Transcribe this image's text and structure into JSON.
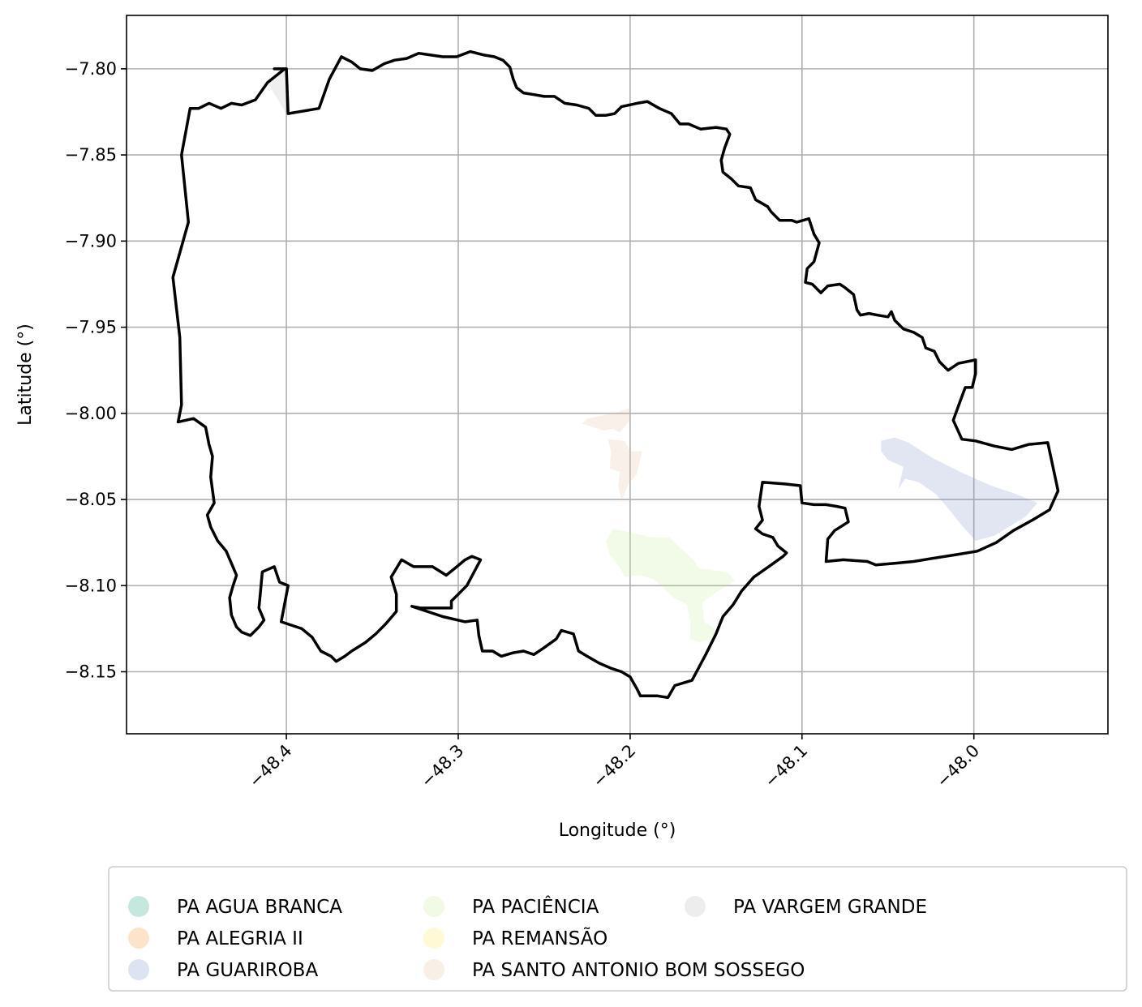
{
  "chart_data": {
    "type": "map",
    "title": "",
    "xlabel": "Longitude (°)",
    "ylabel": "Latitude (°)",
    "xlim": [
      -48.493,
      -47.922
    ],
    "ylim": [
      -8.186,
      -7.769
    ],
    "x_ticks": [
      -48.4,
      -48.3,
      -48.2,
      -48.1,
      -48.0
    ],
    "x_tick_labels": [
      "−48.4",
      "−48.3",
      "−48.2",
      "−48.1",
      "−48.0"
    ],
    "y_ticks": [
      -7.8,
      -7.85,
      -7.9,
      -7.95,
      -8.0,
      -8.05,
      -8.1,
      -8.15
    ],
    "y_tick_labels": [
      "−7.80",
      "−7.85",
      "−7.90",
      "−7.95",
      "−8.00",
      "−8.05",
      "−8.10",
      "−8.15"
    ],
    "grid": true,
    "legend_position": "bottom",
    "legend_columns": 3,
    "boundary": {
      "stroke": "#000000",
      "coords": [
        [
          -48.401,
          -7.8
        ],
        [
          -48.411,
          -7.808
        ],
        [
          -48.418,
          -7.818
        ],
        [
          -48.426,
          -7.821
        ],
        [
          -48.432,
          -7.82
        ],
        [
          -48.438,
          -7.823
        ],
        [
          -48.445,
          -7.82
        ],
        [
          -48.451,
          -7.823
        ],
        [
          -48.456,
          -7.823
        ],
        [
          -48.461,
          -7.85
        ],
        [
          -48.457,
          -7.889
        ],
        [
          -48.466,
          -7.921
        ],
        [
          -48.462,
          -7.956
        ],
        [
          -48.461,
          -7.995
        ],
        [
          -48.463,
          -8.005
        ],
        [
          -48.454,
          -8.003
        ],
        [
          -48.447,
          -8.008
        ],
        [
          -48.445,
          -8.018
        ],
        [
          -48.443,
          -8.025
        ],
        [
          -48.444,
          -8.037
        ],
        [
          -48.442,
          -8.052
        ],
        [
          -48.446,
          -8.059
        ],
        [
          -48.444,
          -8.066
        ],
        [
          -48.44,
          -8.074
        ],
        [
          -48.435,
          -8.08
        ],
        [
          -48.432,
          -8.087
        ],
        [
          -48.429,
          -8.094
        ],
        [
          -48.431,
          -8.1
        ],
        [
          -48.433,
          -8.107
        ],
        [
          -48.432,
          -8.117
        ],
        [
          -48.429,
          -8.124
        ],
        [
          -48.426,
          -8.127
        ],
        [
          -48.421,
          -8.129
        ],
        [
          -48.416,
          -8.124
        ],
        [
          -48.413,
          -8.12
        ],
        [
          -48.416,
          -8.113
        ],
        [
          -48.415,
          -8.103
        ],
        [
          -48.414,
          -8.092
        ],
        [
          -48.407,
          -8.089
        ],
        [
          -48.404,
          -8.098
        ],
        [
          -48.399,
          -8.1
        ],
        [
          -48.403,
          -8.121
        ],
        [
          -48.391,
          -8.125
        ],
        [
          -48.385,
          -8.13
        ],
        [
          -48.38,
          -8.138
        ],
        [
          -48.374,
          -8.141
        ],
        [
          -48.371,
          -8.144
        ],
        [
          -48.366,
          -8.141
        ],
        [
          -48.362,
          -8.138
        ],
        [
          -48.354,
          -8.133
        ],
        [
          -48.348,
          -8.128
        ],
        [
          -48.342,
          -8.122
        ],
        [
          -48.336,
          -8.115
        ],
        [
          -48.336,
          -8.105
        ],
        [
          -48.339,
          -8.095
        ],
        [
          -48.333,
          -8.085
        ],
        [
          -48.326,
          -8.089
        ],
        [
          -48.315,
          -8.089
        ],
        [
          -48.307,
          -8.094
        ],
        [
          -48.302,
          -8.09
        ],
        [
          -48.296,
          -8.085
        ],
        [
          -48.292,
          -8.083
        ],
        [
          -48.287,
          -8.085
        ],
        [
          -48.295,
          -8.1
        ],
        [
          -48.304,
          -8.109
        ],
        [
          -48.304,
          -8.113
        ],
        [
          -48.317,
          -8.113
        ],
        [
          -48.322,
          -8.113
        ],
        [
          -48.327,
          -8.112
        ],
        [
          -48.309,
          -8.118
        ],
        [
          -48.296,
          -8.121
        ],
        [
          -48.289,
          -8.12
        ],
        [
          -48.288,
          -8.129
        ],
        [
          -48.286,
          -8.138
        ],
        [
          -48.28,
          -8.138
        ],
        [
          -48.275,
          -8.141
        ],
        [
          -48.268,
          -8.139
        ],
        [
          -48.262,
          -8.138
        ],
        [
          -48.256,
          -8.14
        ],
        [
          -48.25,
          -8.136
        ],
        [
          -48.243,
          -8.131
        ],
        [
          -48.24,
          -8.126
        ],
        [
          -48.233,
          -8.128
        ],
        [
          -48.23,
          -8.138
        ],
        [
          -48.225,
          -8.141
        ],
        [
          -48.218,
          -8.145
        ],
        [
          -48.211,
          -8.148
        ],
        [
          -48.205,
          -8.15
        ],
        [
          -48.2,
          -8.153
        ],
        [
          -48.196,
          -8.16
        ],
        [
          -48.194,
          -8.164
        ],
        [
          -48.189,
          -8.164
        ],
        [
          -48.184,
          -8.164
        ],
        [
          -48.178,
          -8.165
        ],
        [
          -48.174,
          -8.158
        ],
        [
          -48.164,
          -8.155
        ],
        [
          -48.156,
          -8.14
        ],
        [
          -48.15,
          -8.128
        ],
        [
          -48.146,
          -8.118
        ],
        [
          -48.14,
          -8.111
        ],
        [
          -48.135,
          -8.103
        ],
        [
          -48.128,
          -8.095
        ],
        [
          -48.118,
          -8.088
        ],
        [
          -48.111,
          -8.083
        ],
        [
          -48.109,
          -8.081
        ],
        [
          -48.114,
          -8.077
        ],
        [
          -48.117,
          -8.072
        ],
        [
          -48.123,
          -8.07
        ],
        [
          -48.127,
          -8.067
        ],
        [
          -48.123,
          -8.062
        ],
        [
          -48.125,
          -8.054
        ],
        [
          -48.124,
          -8.047
        ],
        [
          -48.123,
          -8.04
        ],
        [
          -48.11,
          -8.041
        ],
        [
          -48.101,
          -8.042
        ],
        [
          -48.1,
          -8.052
        ],
        [
          -48.093,
          -8.053
        ],
        [
          -48.086,
          -8.053
        ],
        [
          -48.08,
          -8.054
        ],
        [
          -48.075,
          -8.055
        ],
        [
          -48.073,
          -8.063
        ],
        [
          -48.081,
          -8.068
        ],
        [
          -48.085,
          -8.073
        ],
        [
          -48.086,
          -8.086
        ],
        [
          -48.076,
          -8.085
        ],
        [
          -48.062,
          -8.086
        ],
        [
          -48.057,
          -8.088
        ],
        [
          -48.046,
          -8.087
        ],
        [
          -48.035,
          -8.086
        ],
        [
          -48.023,
          -8.084
        ],
        [
          -48.01,
          -8.082
        ],
        [
          -47.998,
          -8.08
        ],
        [
          -47.987,
          -8.075
        ],
        [
          -47.977,
          -8.068
        ],
        [
          -47.966,
          -8.062
        ],
        [
          -47.956,
          -8.056
        ],
        [
          -47.951,
          -8.045
        ],
        [
          -47.954,
          -8.031
        ],
        [
          -47.957,
          -8.017
        ],
        [
          -47.968,
          -8.018
        ],
        [
          -47.978,
          -8.021
        ],
        [
          -47.988,
          -8.019
        ],
        [
          -47.999,
          -8.016
        ],
        [
          -48.007,
          -8.015
        ],
        [
          -48.012,
          -8.004
        ],
        [
          -48.008,
          -7.993
        ],
        [
          -48.005,
          -7.985
        ],
        [
          -48.001,
          -7.985
        ],
        [
          -47.999,
          -7.977
        ],
        [
          -47.999,
          -7.969
        ],
        [
          -48.009,
          -7.971
        ],
        [
          -48.015,
          -7.975
        ],
        [
          -48.02,
          -7.97
        ],
        [
          -48.023,
          -7.964
        ],
        [
          -48.028,
          -7.962
        ],
        [
          -48.03,
          -7.956
        ],
        [
          -48.035,
          -7.953
        ],
        [
          -48.041,
          -7.951
        ],
        [
          -48.046,
          -7.946
        ],
        [
          -48.048,
          -7.941
        ],
        [
          -48.05,
          -7.944
        ],
        [
          -48.056,
          -7.943
        ],
        [
          -48.061,
          -7.942
        ],
        [
          -48.066,
          -7.943
        ],
        [
          -48.068,
          -7.94
        ],
        [
          -48.07,
          -7.931
        ],
        [
          -48.075,
          -7.927
        ],
        [
          -48.078,
          -7.925
        ],
        [
          -48.085,
          -7.926
        ],
        [
          -48.089,
          -7.93
        ],
        [
          -48.094,
          -7.925
        ],
        [
          -48.098,
          -7.924
        ],
        [
          -48.097,
          -7.916
        ],
        [
          -48.093,
          -7.912
        ],
        [
          -48.09,
          -7.901
        ],
        [
          -48.093,
          -7.896
        ],
        [
          -48.096,
          -7.887
        ],
        [
          -48.103,
          -7.889
        ],
        [
          -48.106,
          -7.888
        ],
        [
          -48.113,
          -7.888
        ],
        [
          -48.118,
          -7.883
        ],
        [
          -48.12,
          -7.88
        ],
        [
          -48.127,
          -7.876
        ],
        [
          -48.13,
          -7.869
        ],
        [
          -48.137,
          -7.868
        ],
        [
          -48.141,
          -7.864
        ],
        [
          -48.146,
          -7.86
        ],
        [
          -48.147,
          -7.853
        ],
        [
          -48.145,
          -7.846
        ],
        [
          -48.142,
          -7.838
        ],
        [
          -48.144,
          -7.835
        ],
        [
          -48.15,
          -7.834
        ],
        [
          -48.159,
          -7.835
        ],
        [
          -48.166,
          -7.832
        ],
        [
          -48.171,
          -7.832
        ],
        [
          -48.176,
          -7.826
        ],
        [
          -48.183,
          -7.823
        ],
        [
          -48.19,
          -7.819
        ],
        [
          -48.196,
          -7.82
        ],
        [
          -48.205,
          -7.822
        ],
        [
          -48.209,
          -7.826
        ],
        [
          -48.214,
          -7.827
        ],
        [
          -48.22,
          -7.827
        ],
        [
          -48.224,
          -7.823
        ],
        [
          -48.231,
          -7.821
        ],
        [
          -48.238,
          -7.82
        ],
        [
          -48.244,
          -7.816
        ],
        [
          -48.25,
          -7.816
        ],
        [
          -48.256,
          -7.815
        ],
        [
          -48.262,
          -7.814
        ],
        [
          -48.266,
          -7.811
        ],
        [
          -48.268,
          -7.806
        ],
        [
          -48.27,
          -7.799
        ],
        [
          -48.274,
          -7.795
        ],
        [
          -48.279,
          -7.793
        ],
        [
          -48.285,
          -7.792
        ],
        [
          -48.293,
          -7.79
        ],
        [
          -48.301,
          -7.793
        ],
        [
          -48.309,
          -7.793
        ],
        [
          -48.316,
          -7.792
        ],
        [
          -48.323,
          -7.791
        ],
        [
          -48.33,
          -7.794
        ],
        [
          -48.337,
          -7.795
        ],
        [
          -48.343,
          -7.797
        ],
        [
          -48.35,
          -7.801
        ],
        [
          -48.357,
          -7.8
        ],
        [
          -48.362,
          -7.796
        ],
        [
          -48.368,
          -7.793
        ],
        [
          -48.375,
          -7.806
        ],
        [
          -48.381,
          -7.823
        ],
        [
          -48.399,
          -7.826
        ],
        [
          -48.4,
          -7.8
        ],
        [
          -48.407,
          -7.8
        ]
      ]
    },
    "regions": [
      {
        "name": "PA AGUA BRANCA",
        "color": "#1b9e77",
        "polygons": []
      },
      {
        "name": "PA ALEGRIA II",
        "color": "#f28e2b",
        "polygons": []
      },
      {
        "name": "PA GUARIROBA",
        "color": "#7b8fc7",
        "polygons": [
          [
            [
              -48.054,
              -8.016
            ],
            [
              -48.046,
              -8.014
            ],
            [
              -48.038,
              -8.017
            ],
            [
              -48.024,
              -8.026
            ],
            [
              -48.008,
              -8.034
            ],
            [
              -47.99,
              -8.042
            ],
            [
              -47.975,
              -8.047
            ],
            [
              -47.963,
              -8.052
            ],
            [
              -47.97,
              -8.06
            ],
            [
              -47.988,
              -8.071
            ],
            [
              -47.999,
              -8.074
            ],
            [
              -48.008,
              -8.064
            ],
            [
              -48.015,
              -8.055
            ],
            [
              -48.022,
              -8.047
            ],
            [
              -48.032,
              -8.04
            ],
            [
              -48.04,
              -8.038
            ],
            [
              -48.044,
              -8.044
            ],
            [
              -48.041,
              -8.031
            ],
            [
              -48.05,
              -8.027
            ],
            [
              -48.054,
              -8.022
            ]
          ]
        ]
      },
      {
        "name": "PA PACIÊNCIA",
        "color": "#c5ec98",
        "polygons": [
          [
            [
              -48.21,
              -8.067
            ],
            [
              -48.196,
              -8.07
            ],
            [
              -48.188,
              -8.072
            ],
            [
              -48.177,
              -8.072
            ],
            [
              -48.172,
              -8.077
            ],
            [
              -48.163,
              -8.085
            ],
            [
              -48.16,
              -8.09
            ],
            [
              -48.144,
              -8.092
            ],
            [
              -48.139,
              -8.097
            ],
            [
              -48.145,
              -8.101
            ],
            [
              -48.152,
              -8.105
            ],
            [
              -48.158,
              -8.11
            ],
            [
              -48.157,
              -8.121
            ],
            [
              -48.149,
              -8.126
            ],
            [
              -48.153,
              -8.131
            ],
            [
              -48.16,
              -8.133
            ],
            [
              -48.165,
              -8.131
            ],
            [
              -48.165,
              -8.121
            ],
            [
              -48.167,
              -8.111
            ],
            [
              -48.175,
              -8.107
            ],
            [
              -48.182,
              -8.1
            ],
            [
              -48.187,
              -8.096
            ],
            [
              -48.195,
              -8.094
            ],
            [
              -48.203,
              -8.095
            ],
            [
              -48.207,
              -8.088
            ],
            [
              -48.212,
              -8.082
            ],
            [
              -48.214,
              -8.074
            ]
          ]
        ]
      },
      {
        "name": "PA REMANSÃO",
        "color": "#ffe85c",
        "polygons": []
      },
      {
        "name": "PA SANTO ANTONIO BOM SOSSEGO",
        "color": "#e4c09a",
        "polygons": [
          [
            [
              -48.2,
              -7.997
            ],
            [
              -48.21,
              -8.0
            ],
            [
              -48.225,
              -8.003
            ],
            [
              -48.228,
              -8.006
            ],
            [
              -48.215,
              -8.01
            ],
            [
              -48.21,
              -8.009
            ],
            [
              -48.206,
              -8.011
            ],
            [
              -48.2,
              -8.004
            ]
          ],
          [
            [
              -48.213,
              -8.015
            ],
            [
              -48.203,
              -8.016
            ],
            [
              -48.2,
              -8.022
            ],
            [
              -48.193,
              -8.022
            ],
            [
              -48.196,
              -8.035
            ],
            [
              -48.201,
              -8.041
            ],
            [
              -48.205,
              -8.051
            ],
            [
              -48.207,
              -8.042
            ],
            [
              -48.206,
              -8.034
            ],
            [
              -48.212,
              -8.032
            ],
            [
              -48.211,
              -8.022
            ]
          ]
        ]
      },
      {
        "name": "PA VARGEM GRANDE",
        "color": "#b6b6b6",
        "polygons": [
          [
            [
              -48.4,
              -7.8
            ],
            [
              -48.411,
              -7.808
            ],
            [
              -48.4,
              -7.826
            ]
          ]
        ]
      }
    ]
  }
}
